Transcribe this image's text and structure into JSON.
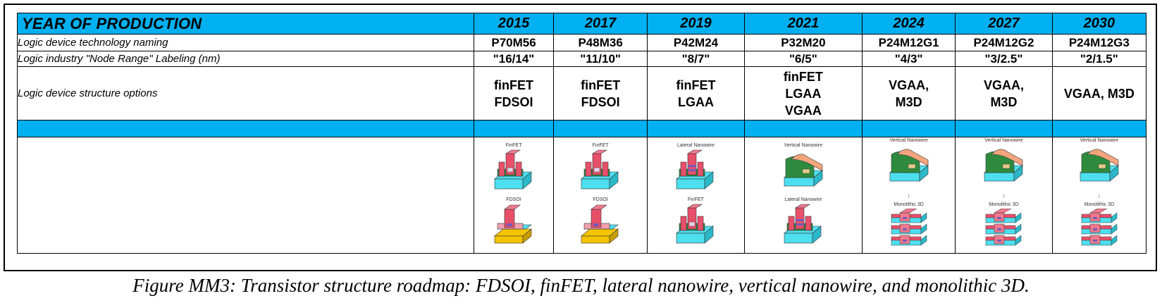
{
  "table": {
    "header_label": "YEAR OF PRODUCTION",
    "years": [
      "2015",
      "2017",
      "2019",
      "2021",
      "2024",
      "2027",
      "2030"
    ],
    "rows": [
      {
        "label": "Logic device technology naming",
        "values": [
          "P70M56",
          "P48M36",
          "P42M24",
          "P32M20",
          "P24M12G1",
          "P24M12G2",
          "P24M12G3"
        ]
      },
      {
        "label": "Logic industry \"Node Range\" Labeling (nm)",
        "values": [
          "\"16/14\"",
          "\"11/10\"",
          "\"8/7\"",
          "\"6/5\"",
          "\"4/3\"",
          "\"3/2.5\"",
          "\"2/1.5\""
        ]
      },
      {
        "label": "Logic device structure options",
        "values": [
          [
            "finFET",
            "FDSOI"
          ],
          [
            "finFET",
            "FDSOI"
          ],
          [
            "finFET",
            "LGAA"
          ],
          [
            "finFET",
            "LGAA",
            "VGAA"
          ],
          [
            "VGAA,",
            "M3D"
          ],
          [
            "VGAA,",
            "M3D"
          ],
          [
            "VGAA, M3D"
          ]
        ]
      }
    ],
    "illustrations": [
      {
        "top_caption": "FinFET",
        "top_kind": "finfet",
        "arrow": "",
        "bottom_caption": "FDSOI",
        "bottom_kind": "fdsoi"
      },
      {
        "top_caption": "FinFET",
        "top_kind": "finfet",
        "arrow": "",
        "bottom_caption": "FDSOI",
        "bottom_kind": "fdsoi"
      },
      {
        "top_caption": "Lateral Nanowire",
        "top_kind": "lateral",
        "arrow": "",
        "bottom_caption": "FinFET",
        "bottom_kind": "finfet"
      },
      {
        "top_caption": "Vertical Nanowire",
        "top_kind": "vertical",
        "arrow": "",
        "bottom_caption": "Lateral Nanowire",
        "bottom_kind": "lateral"
      },
      {
        "top_caption": "Vertical Nanowire",
        "top_kind": "vertical",
        "arrow": "↓",
        "bottom_caption": "Monolithic 3D",
        "bottom_kind": "m3d"
      },
      {
        "top_caption": "Vertical Nanowire",
        "top_kind": "vertical",
        "arrow": "↓",
        "bottom_caption": "Monolithic 3D",
        "bottom_kind": "m3d"
      },
      {
        "top_caption": "Vertical Nanowire",
        "top_kind": "vertical",
        "arrow": "↓",
        "bottom_caption": "Monolithic 3D",
        "bottom_kind": "m3d"
      }
    ]
  },
  "caption": "Figure MM3: Transistor structure roadmap: FDSOI, finFET, lateral nanowire, vertical nanowire, and monolithic 3D.",
  "colors": {
    "header_fill": "#00b0f0",
    "substrate": "#4ddfef",
    "oxide_box": "#f5c400",
    "gate": "#e8506a",
    "fin": "#f0a0b0",
    "channel": "#2e8b3e",
    "contact": "#7a5ab5",
    "vertical_body": "#f4a57d"
  }
}
